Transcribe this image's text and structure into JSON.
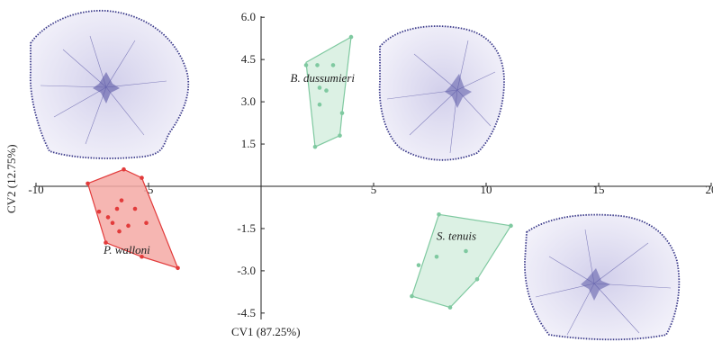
{
  "chart_data": {
    "type": "scatter",
    "title": "",
    "xlabel": "CV1 (87.25%)",
    "ylabel": "CV2 (12.75%)",
    "xlim": [
      -10,
      20
    ],
    "ylim": [
      -4.5,
      6.0
    ],
    "x_ticks": [
      "-10",
      "-5",
      "5",
      "10",
      "15",
      "20"
    ],
    "y_ticks": [
      "6.0",
      "4.5",
      "3.0",
      "1.5",
      "-1.5",
      "-3.0",
      "-4.5"
    ],
    "grid": false,
    "legend": "none",
    "groups": [
      {
        "label": "B. dussumieri",
        "color": "#7fc9a0",
        "fill": "#d6efdf",
        "points": [
          [
            2.0,
            4.3
          ],
          [
            2.5,
            4.3
          ],
          [
            3.2,
            4.3
          ],
          [
            2.6,
            3.5
          ],
          [
            2.9,
            3.4
          ],
          [
            2.6,
            2.9
          ],
          [
            3.6,
            2.6
          ],
          [
            3.5,
            1.8
          ],
          [
            2.4,
            1.4
          ],
          [
            4.0,
            5.3
          ]
        ],
        "hull": [
          [
            2.0,
            4.4
          ],
          [
            4.0,
            5.3
          ],
          [
            3.6,
            2.6
          ],
          [
            3.5,
            1.8
          ],
          [
            2.4,
            1.4
          ]
        ]
      },
      {
        "label": "P. walloni",
        "color": "#e23b3b",
        "fill": "#f4a9a4",
        "points": [
          [
            -7.7,
            0.1
          ],
          [
            -6.1,
            0.6
          ],
          [
            -5.3,
            0.3
          ],
          [
            -6.8,
            -1.1
          ],
          [
            -6.6,
            -1.3
          ],
          [
            -6.4,
            -0.8
          ],
          [
            -6.2,
            -0.5
          ],
          [
            -5.6,
            -0.8
          ],
          [
            -6.3,
            -1.6
          ],
          [
            -5.9,
            -1.4
          ],
          [
            -5.1,
            -1.3
          ],
          [
            -7.2,
            -0.9
          ],
          [
            -5.3,
            -2.5
          ],
          [
            -3.7,
            -2.9
          ],
          [
            -6.9,
            -2.0
          ]
        ],
        "hull": [
          [
            -7.7,
            0.1
          ],
          [
            -6.1,
            0.6
          ],
          [
            -5.3,
            0.3
          ],
          [
            -3.7,
            -2.9
          ],
          [
            -5.3,
            -2.5
          ],
          [
            -6.9,
            -2.0
          ]
        ]
      },
      {
        "label": "S. tenuis",
        "color": "#7fc9a0",
        "fill": "#d6efdf",
        "points": [
          [
            7.9,
            -1.0
          ],
          [
            11.1,
            -1.4
          ],
          [
            9.1,
            -2.3
          ],
          [
            7.8,
            -2.5
          ],
          [
            7.0,
            -2.8
          ],
          [
            9.6,
            -3.3
          ],
          [
            6.7,
            -3.9
          ],
          [
            8.4,
            -4.3
          ]
        ],
        "hull": [
          [
            7.9,
            -1.0
          ],
          [
            11.1,
            -1.4
          ],
          [
            9.6,
            -3.3
          ],
          [
            8.4,
            -4.3
          ],
          [
            6.7,
            -3.9
          ]
        ]
      }
    ],
    "outlines": [
      {
        "name": "outline-top-left",
        "color": "#3b3a8a"
      },
      {
        "name": "outline-top-right",
        "color": "#3b3a8a"
      },
      {
        "name": "outline-bottom-right",
        "color": "#3b3a8a"
      }
    ]
  }
}
